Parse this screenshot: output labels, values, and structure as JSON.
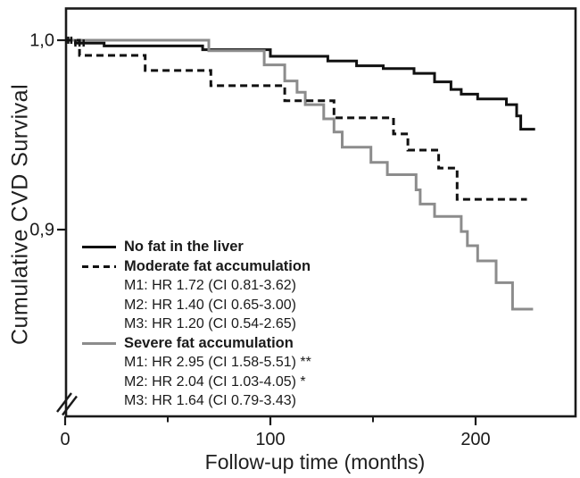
{
  "figure": {
    "background": "#ffffff",
    "colors": {
      "curve_black": "#111111",
      "curve_gray": "#8c8c8c",
      "axis": "#1a1a1a"
    },
    "y_axis": {
      "label": "Cumulative CVD Survival",
      "ticks": [
        "1,0",
        "0,9"
      ],
      "tick_values": [
        1.0,
        0.9
      ],
      "axis_break": true
    },
    "x_axis": {
      "label": "Follow-up time (months)",
      "ticks": [
        "0",
        "100",
        "200"
      ],
      "tick_values": [
        0,
        100,
        200
      ],
      "minor_tick_values": [
        50,
        150
      ]
    }
  },
  "chart_data": {
    "type": "line",
    "subtype": "kaplan-meier-step",
    "title": "",
    "xlabel": "Follow-up time (months)",
    "ylabel": "Cumulative CVD Survival",
    "xlim": [
      0,
      249
    ],
    "ylim_shown": [
      0.9,
      1.0
    ],
    "y_axis_break": true,
    "grid": false,
    "legend_position": "inside-lower-left",
    "series": [
      {
        "name": "No fat in the liver",
        "style": "solid",
        "color": "#111111",
        "points": [
          [
            0,
            1.0
          ],
          [
            5,
            0.9985
          ],
          [
            19,
            0.997
          ],
          [
            67,
            0.995
          ],
          [
            100,
            0.9915
          ],
          [
            128,
            0.989
          ],
          [
            142,
            0.9865
          ],
          [
            155,
            0.985
          ],
          [
            170,
            0.9825
          ],
          [
            180,
            0.978
          ],
          [
            188,
            0.974
          ],
          [
            193,
            0.9715
          ],
          [
            201,
            0.969
          ],
          [
            215,
            0.966
          ],
          [
            220,
            0.96
          ],
          [
            222,
            0.953
          ],
          [
            229,
            0.953
          ]
        ]
      },
      {
        "name": "Severe fat accumulation",
        "style": "solid",
        "color": "#8c8c8c",
        "points": [
          [
            0,
            1.0
          ],
          [
            70,
            0.9945
          ],
          [
            97,
            0.987
          ],
          [
            107,
            0.9785
          ],
          [
            113,
            0.9725
          ],
          [
            117,
            0.966
          ],
          [
            126,
            0.9585
          ],
          [
            131,
            0.9515
          ],
          [
            135,
            0.9435
          ],
          [
            149,
            0.9355
          ],
          [
            157,
            0.929
          ],
          [
            171,
            0.921
          ],
          [
            173,
            0.9135
          ],
          [
            180,
            0.907
          ],
          [
            193,
            0.899
          ],
          [
            196,
            0.8915
          ],
          [
            201,
            0.8835
          ],
          [
            210,
            0.872
          ],
          [
            218,
            0.858
          ],
          [
            228,
            0.858
          ]
        ]
      },
      {
        "name": "Moderate fat accumulation",
        "style": "dashed",
        "color": "#111111",
        "points": [
          [
            0,
            1.0
          ],
          [
            7,
            0.992
          ],
          [
            39,
            0.984
          ],
          [
            71,
            0.976
          ],
          [
            107,
            0.968
          ],
          [
            131,
            0.959
          ],
          [
            160,
            0.9505
          ],
          [
            167,
            0.942
          ],
          [
            182,
            0.9325
          ],
          [
            191,
            0.916
          ],
          [
            225,
            0.916
          ]
        ]
      }
    ],
    "censor_marks": {
      "series": "No fat in the liver",
      "points": [
        [
          1.5,
          1.0
        ],
        [
          3,
          1.0
        ],
        [
          5,
          0.9985
        ],
        [
          7,
          0.9985
        ],
        [
          9,
          0.9985
        ]
      ]
    }
  },
  "legend": {
    "items": [
      {
        "label": "No fat in the liver",
        "style": "solid-black",
        "lines": []
      },
      {
        "label": "Moderate fat accumulation",
        "style": "dashed-black",
        "lines": [
          "M1: HR 1.72 (CI 0.81-3.62)",
          "M2: HR 1.40 (CI 0.65-3.00)",
          "M3: HR 1.20 (CI 0.54-2.65)"
        ]
      },
      {
        "label": "Severe fat accumulation",
        "style": "solid-gray",
        "lines": [
          "M1: HR 2.95 (CI 1.58-5.51) **",
          "M2: HR 2.04 (CI 1.03-4.05) *",
          "M3: HR 1.64 (CI 0.79-3.43)"
        ]
      }
    ]
  }
}
